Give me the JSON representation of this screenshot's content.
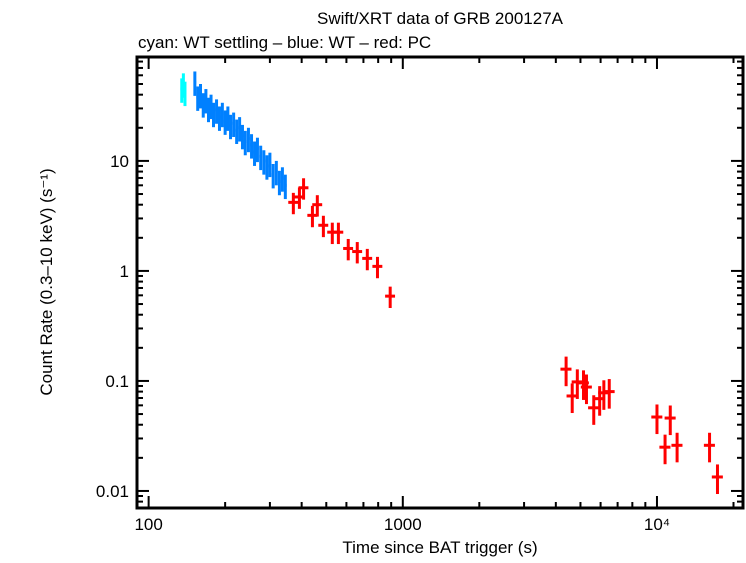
{
  "chart_data": {
    "type": "scatter",
    "title": "Swift/XRT data of GRB 200127A",
    "subtitle": "cyan: WT settling – blue: WT – red: PC",
    "xlabel": "Time since BAT trigger (s)",
    "ylabel": "Count Rate (0.3–10 keV) (s⁻¹)",
    "xscale": "log",
    "yscale": "log",
    "xlim": [
      90,
      21800
    ],
    "ylim": [
      0.007,
      88
    ],
    "x_ticks": [
      {
        "v": 100,
        "label": "100"
      },
      {
        "v": 1000,
        "label": "1000"
      },
      {
        "v": 10000,
        "label": "10⁴"
      }
    ],
    "y_ticks": [
      {
        "v": 0.01,
        "label": "0.01"
      },
      {
        "v": 0.1,
        "label": "0.1"
      },
      {
        "v": 1,
        "label": "1"
      },
      {
        "v": 10,
        "label": "10"
      }
    ],
    "grid": false,
    "series": [
      {
        "color": "#00ffff",
        "points": [
          [
            135,
            45
          ],
          [
            137,
            50
          ],
          [
            139,
            42
          ]
        ]
      },
      {
        "color": "#0080ff",
        "points": [
          [
            152,
            52
          ],
          [
            156,
            38
          ],
          [
            160,
            40
          ],
          [
            164,
            33
          ],
          [
            168,
            36
          ],
          [
            172,
            30
          ],
          [
            176,
            32
          ],
          [
            180,
            27
          ],
          [
            185,
            29
          ],
          [
            190,
            25
          ],
          [
            195,
            27
          ],
          [
            200,
            23
          ],
          [
            205,
            25
          ],
          [
            210,
            21
          ],
          [
            216,
            22
          ],
          [
            222,
            19
          ],
          [
            228,
            20
          ],
          [
            234,
            17
          ],
          [
            240,
            15
          ],
          [
            247,
            16
          ],
          [
            254,
            14
          ],
          [
            261,
            12
          ],
          [
            268,
            13
          ],
          [
            276,
            11
          ],
          [
            284,
            10
          ],
          [
            292,
            9
          ],
          [
            300,
            9.5
          ],
          [
            309,
            7.5
          ],
          [
            318,
            8
          ],
          [
            327,
            6.5
          ],
          [
            336,
            7
          ],
          [
            345,
            6
          ]
        ]
      },
      {
        "color": "#ff0000",
        "points": [
          [
            371,
            4.2
          ],
          [
            392,
            4.7
          ],
          [
            407,
            5.7
          ],
          [
            441,
            3.2
          ],
          [
            461,
            4.0
          ],
          [
            487,
            2.6
          ],
          [
            528,
            2.25
          ],
          [
            558,
            2.25
          ],
          [
            610,
            1.6
          ],
          [
            662,
            1.5
          ],
          [
            725,
            1.3
          ],
          [
            795,
            1.1
          ],
          [
            892,
            0.59
          ],
          [
            4390,
            0.128
          ],
          [
            4640,
            0.073
          ],
          [
            4860,
            0.098
          ],
          [
            5140,
            0.096
          ],
          [
            5280,
            0.088
          ],
          [
            5640,
            0.057
          ],
          [
            5950,
            0.069
          ],
          [
            6180,
            0.078
          ],
          [
            6490,
            0.08
          ],
          [
            10000,
            0.047
          ],
          [
            10760,
            0.025
          ],
          [
            11280,
            0.046
          ],
          [
            12000,
            0.026
          ],
          [
            16100,
            0.026
          ],
          [
            17300,
            0.0134
          ]
        ]
      }
    ]
  }
}
